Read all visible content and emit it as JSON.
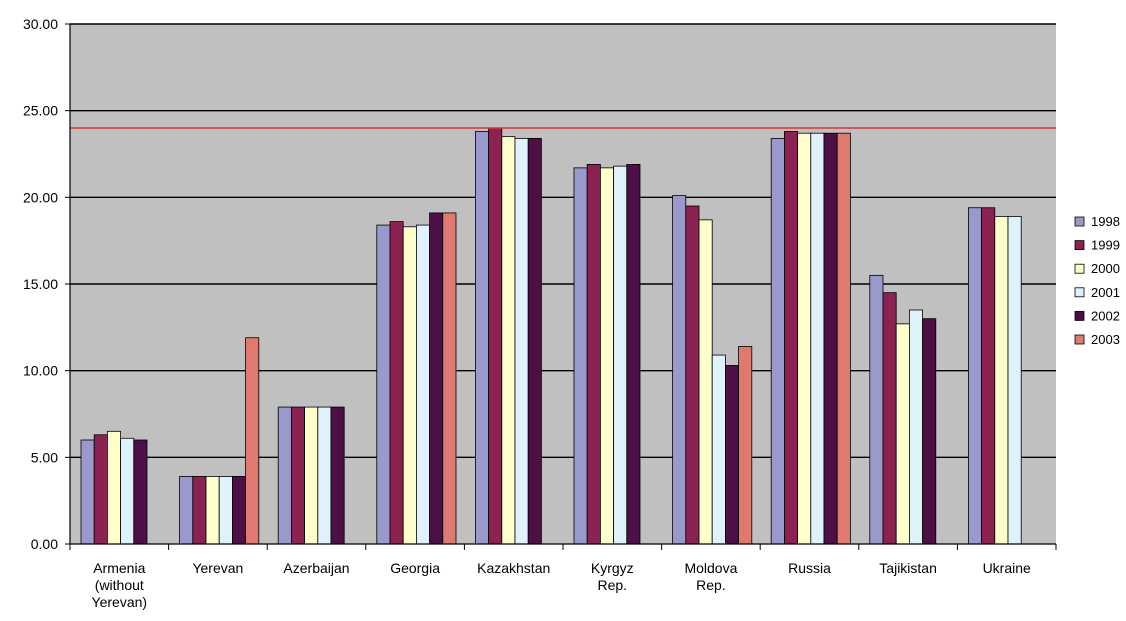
{
  "chart_data": {
    "type": "bar",
    "title": "",
    "xlabel": "",
    "ylabel": "",
    "ylim": [
      0,
      30
    ],
    "yticks": [
      "0.00",
      "5.00",
      "10.00",
      "15.00",
      "20.00",
      "25.00",
      "30.00"
    ],
    "grid": true,
    "legend_position": "right",
    "reference_line": {
      "value": 24,
      "color": "#e8302a"
    },
    "categories": [
      [
        "Armenia",
        "(without",
        "Yerevan)"
      ],
      [
        "Yerevan"
      ],
      [
        "Azerbaijan"
      ],
      [
        "Georgia"
      ],
      [
        "Kazakhstan"
      ],
      [
        "Kyrgyz",
        "Rep."
      ],
      [
        "Moldova",
        "Rep."
      ],
      [
        "Russia"
      ],
      [
        "Tajikistan"
      ],
      [
        "Ukraine"
      ]
    ],
    "series": [
      {
        "name": "1998",
        "color": "#9999cc",
        "values": [
          6.0,
          3.9,
          7.9,
          18.4,
          23.8,
          21.7,
          20.1,
          23.4,
          15.5,
          19.4
        ]
      },
      {
        "name": "1999",
        "color": "#8b2252",
        "values": [
          6.3,
          3.9,
          7.9,
          18.6,
          24.0,
          21.9,
          19.5,
          23.8,
          14.5,
          19.4
        ]
      },
      {
        "name": "2000",
        "color": "#ffffcc",
        "values": [
          6.5,
          3.9,
          7.9,
          18.3,
          23.5,
          21.7,
          18.7,
          23.7,
          12.7,
          18.9
        ]
      },
      {
        "name": "2001",
        "color": "#dff2fb",
        "values": [
          6.1,
          3.9,
          7.9,
          18.4,
          23.4,
          21.8,
          10.9,
          23.7,
          13.5,
          18.9
        ]
      },
      {
        "name": "2002",
        "color": "#4d1046",
        "values": [
          6.0,
          3.9,
          7.9,
          19.1,
          23.4,
          21.9,
          10.3,
          23.7,
          13.0,
          null
        ]
      },
      {
        "name": "2003",
        "color": "#e07a70",
        "values": [
          null,
          11.9,
          null,
          19.1,
          null,
          null,
          11.4,
          23.7,
          null,
          null
        ]
      }
    ]
  }
}
